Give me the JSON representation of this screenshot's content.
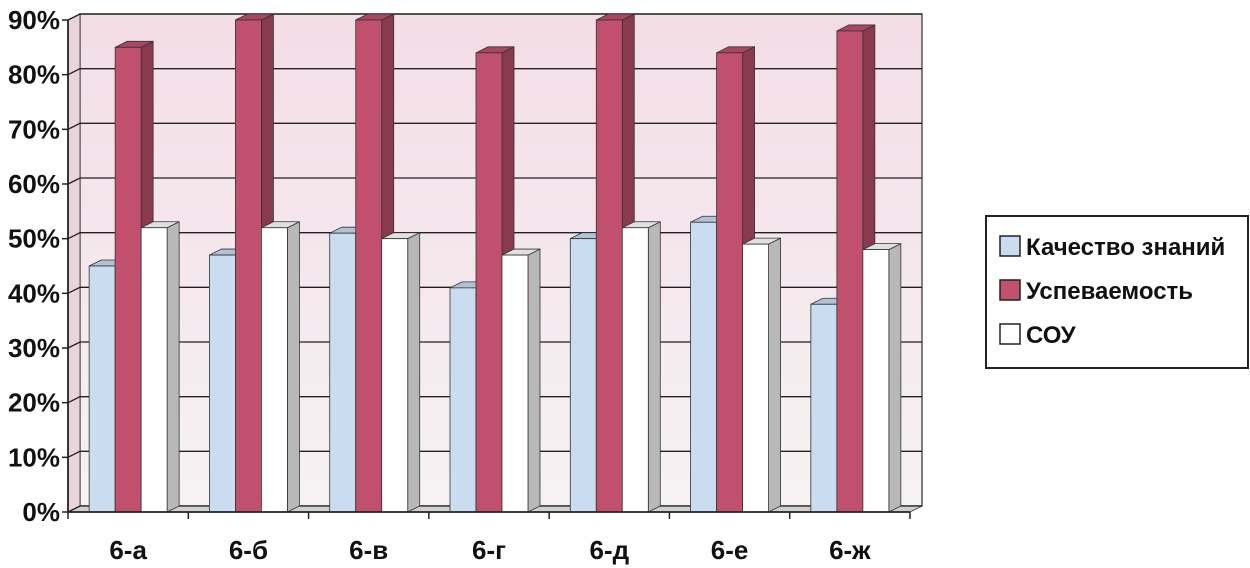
{
  "chart_data": {
    "type": "bar",
    "categories": [
      "6-а",
      "6-б",
      "6-в",
      "6-г",
      "6-д",
      "6-е",
      "6-ж"
    ],
    "series": [
      {
        "name": "Качество знаний",
        "values": [
          45,
          47,
          51,
          41,
          50,
          53,
          38
        ],
        "color": "#c9dcf0"
      },
      {
        "name": "Успеваемость",
        "values": [
          85,
          90,
          90,
          84,
          90,
          84,
          88
        ],
        "color": "#c0506e"
      },
      {
        "name": "СОУ",
        "values": [
          52,
          52,
          50,
          47,
          52,
          49,
          48
        ],
        "color": "#ffffff"
      }
    ],
    "ylim": [
      0,
      90
    ],
    "yticks": [
      "0%",
      "10%",
      "20%",
      "30%",
      "40%",
      "50%",
      "60%",
      "70%",
      "80%",
      "90%"
    ],
    "grid": true,
    "legend_position": "right"
  }
}
